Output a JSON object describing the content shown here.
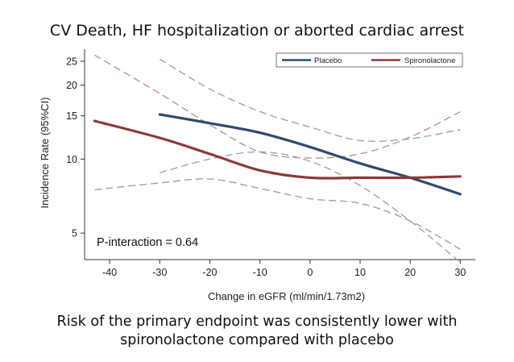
{
  "title": "CV Death, HF hospitalization or aborted cardiac arrest",
  "caption_lines": [
    "Risk of the primary endpoint was consistently lower with",
    "spironolactone compared with placebo"
  ],
  "chart_data": {
    "type": "line",
    "xlabel": "Change in eGFR (ml/min/1.73m2)",
    "ylabel": "Incidence Rate (95%CI)",
    "xlim": [
      -45,
      33
    ],
    "ylim": [
      3.9,
      28
    ],
    "yscale": "log",
    "xticks": [
      -40,
      -30,
      -20,
      -10,
      0,
      10,
      20,
      30
    ],
    "yticks": [
      5,
      10,
      15,
      20,
      25
    ],
    "grid": false,
    "legend_position": "top-right",
    "annotation": "P-interaction = 0.64",
    "series": [
      {
        "name": "Placebo",
        "color": "#2e4a73",
        "x": [
          -30,
          -20,
          -10,
          0,
          10,
          20,
          30
        ],
        "y": [
          15.2,
          14.0,
          12.8,
          11.2,
          9.6,
          8.4,
          7.2
        ],
        "ci_lower": {
          "x": [
            -30,
            -20,
            -10,
            0,
            10,
            20,
            30
          ],
          "y": [
            8.8,
            10.0,
            10.7,
            9.8,
            7.8,
            5.6,
            3.8
          ]
        },
        "ci_upper": {
          "x": [
            -30,
            -20,
            -10,
            0,
            10,
            20,
            30
          ],
          "y": [
            25.5,
            19.3,
            15.6,
            13.5,
            11.9,
            12.1,
            13.2
          ]
        }
      },
      {
        "name": "Spironolactone",
        "color": "#8b3a3a",
        "x": [
          -43,
          -30,
          -20,
          -10,
          0,
          10,
          20,
          30
        ],
        "y": [
          14.3,
          12.2,
          10.5,
          9.0,
          8.4,
          8.4,
          8.4,
          8.5
        ],
        "ci_lower": {
          "x": [
            -43,
            -30,
            -20,
            -10,
            0,
            10,
            20,
            30
          ],
          "y": [
            7.5,
            8.0,
            8.3,
            7.6,
            6.9,
            6.6,
            5.6,
            4.3
          ]
        },
        "ci_upper": {
          "x": [
            -43,
            -30,
            -20,
            -10,
            0,
            10,
            20,
            30
          ],
          "y": [
            26.5,
            18.5,
            13.8,
            10.7,
            10.1,
            10.5,
            12.3,
            15.6
          ]
        }
      }
    ]
  }
}
